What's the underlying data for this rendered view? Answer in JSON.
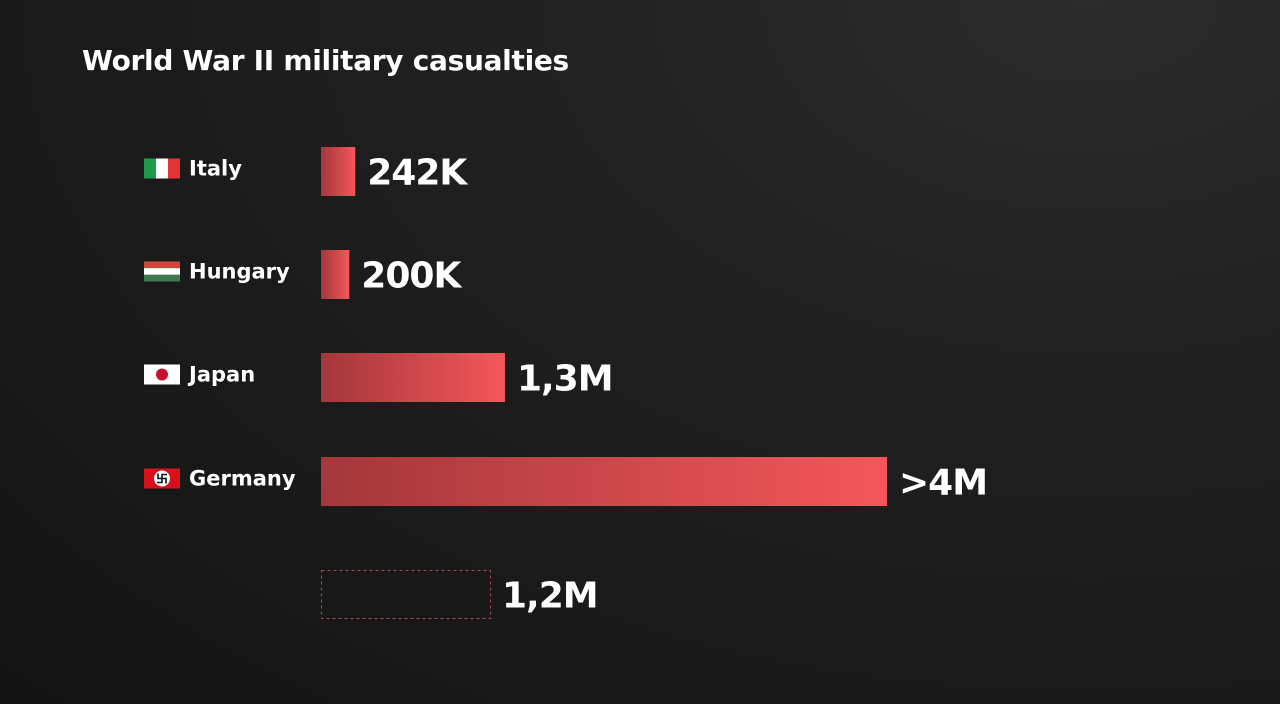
{
  "chart_data": {
    "type": "bar",
    "orientation": "horizontal",
    "title": "World War II military casualties",
    "categories": [
      "Italy",
      "Hungary",
      "Japan",
      "Germany",
      ""
    ],
    "values": [
      242000,
      200000,
      1300000,
      4000000,
      1200000
    ],
    "value_labels": [
      "242K",
      "200K",
      "1,3M",
      ">4M",
      "1,2M"
    ],
    "flags": [
      "italy-flag-icon",
      "hungary-flag-icon",
      "japan-flag-icon",
      "germany-flag-icon",
      ""
    ],
    "styles": [
      "filled",
      "filled",
      "filled",
      "filled",
      "outline"
    ],
    "xlim": [
      0,
      4000000
    ],
    "grid": false,
    "legend": "none",
    "colors": {
      "bar_start": "#a3373a",
      "bar_end": "#f4575a",
      "outline": "#b2454a"
    }
  }
}
